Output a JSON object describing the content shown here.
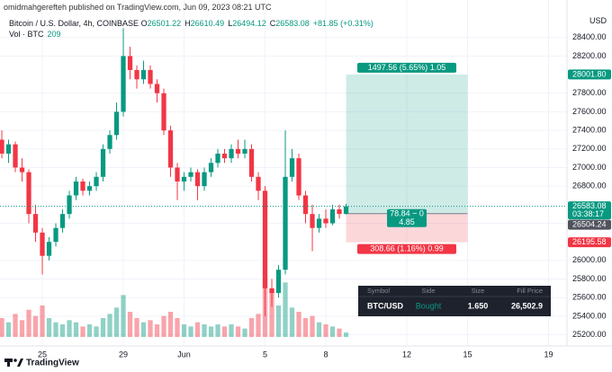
{
  "header": {
    "author_line": "omidmahgerefteh published on TradingView.com, Jun 09, 2023 08:21 UTC"
  },
  "chart_data": {
    "type": "candlestick",
    "symbol": "Bitcoin / U.S. Dollar, 4h, COINBASE",
    "ohlc_legend": [
      {
        "label": "O",
        "value": "26501.22"
      },
      {
        "label": "H",
        "value": "26610.49"
      },
      {
        "label": "L",
        "value": "26494.12"
      },
      {
        "label": "C",
        "value": "26583.08"
      }
    ],
    "change": "+81.85 (+0.31%)",
    "volume_legend": {
      "label": "Vol · BTC",
      "value": "209"
    },
    "currency": "USD",
    "candles": [
      [
        27300,
        27400,
        27100,
        27150
      ],
      [
        27150,
        27300,
        27050,
        27250
      ],
      [
        27250,
        27280,
        26950,
        27000
      ],
      [
        27000,
        27100,
        26850,
        26950
      ],
      [
        26950,
        26980,
        26400,
        26500
      ],
      [
        26500,
        26600,
        26200,
        26300
      ],
      [
        26300,
        26350,
        25850,
        26050
      ],
      [
        26050,
        26250,
        26000,
        26200
      ],
      [
        26200,
        26400,
        26150,
        26350
      ],
      [
        26350,
        26550,
        26300,
        26500
      ],
      [
        26500,
        26750,
        26450,
        26700
      ],
      [
        26700,
        26900,
        26650,
        26850
      ],
      [
        26850,
        26880,
        26700,
        26750
      ],
      [
        26750,
        26850,
        26700,
        26800
      ],
      [
        26800,
        26950,
        26750,
        26900
      ],
      [
        26900,
        27250,
        26850,
        27200
      ],
      [
        27200,
        27400,
        27150,
        27350
      ],
      [
        27350,
        27700,
        27300,
        27600
      ],
      [
        27600,
        28500,
        27550,
        28200
      ],
      [
        28200,
        28300,
        27950,
        28050
      ],
      [
        28050,
        28100,
        27850,
        27950
      ],
      [
        27950,
        28150,
        27900,
        28050
      ],
      [
        28050,
        28100,
        27850,
        27900
      ],
      [
        27900,
        27950,
        27700,
        27800
      ],
      [
        27800,
        27850,
        27350,
        27400
      ],
      [
        27400,
        27450,
        26900,
        27000
      ],
      [
        27000,
        27050,
        26650,
        26850
      ],
      [
        26850,
        26950,
        26750,
        26900
      ],
      [
        26900,
        27000,
        26850,
        26950
      ],
      [
        26950,
        26980,
        26650,
        26800
      ],
      [
        26800,
        27000,
        26750,
        26950
      ],
      [
        26950,
        27100,
        26900,
        27050
      ],
      [
        27050,
        27200,
        27000,
        27150
      ],
      [
        27150,
        27200,
        27050,
        27100
      ],
      [
        27100,
        27250,
        27050,
        27200
      ],
      [
        27200,
        27300,
        27100,
        27150
      ],
      [
        27150,
        27300,
        27100,
        27200
      ],
      [
        27200,
        27250,
        26850,
        26900
      ],
      [
        26900,
        26950,
        26650,
        26750
      ],
      [
        26750,
        26800,
        25400,
        25700
      ],
      [
        25700,
        25800,
        25500,
        25650
      ],
      [
        25650,
        25950,
        25600,
        25900
      ],
      [
        25900,
        27400,
        25850,
        26900
      ],
      [
        26900,
        27200,
        26850,
        27100
      ],
      [
        27100,
        27150,
        26650,
        26700
      ],
      [
        26700,
        26750,
        26400,
        26500
      ],
      [
        26500,
        26600,
        26100,
        26350
      ],
      [
        26350,
        26500,
        26300,
        26450
      ],
      [
        26450,
        26550,
        26350,
        26400
      ],
      [
        26400,
        26600,
        26380,
        26550
      ],
      [
        26550,
        26600,
        26450,
        26500
      ],
      [
        26501.22,
        26610.49,
        26494.12,
        26583.08
      ]
    ],
    "volume": [
      900,
      700,
      1100,
      800,
      1300,
      1000,
      1500,
      900,
      700,
      600,
      800,
      700,
      500,
      600,
      500,
      900,
      1100,
      1400,
      2000,
      1200,
      900,
      700,
      800,
      600,
      1000,
      1200,
      900,
      600,
      500,
      700,
      600,
      500,
      600,
      500,
      600,
      500,
      400,
      900,
      1100,
      2800,
      2200,
      1500,
      2600,
      1400,
      1200,
      900,
      1000,
      700,
      600,
      500,
      400,
      209
    ],
    "volume_lim": [
      0,
      3000
    ],
    "ylim": [
      25080,
      28610
    ],
    "yticks": [
      {
        "value": 28400,
        "label": "28400.00"
      },
      {
        "value": 28200,
        "label": "28200.00"
      },
      {
        "value": 27800,
        "label": "27800.00"
      },
      {
        "value": 27600,
        "label": "27600.00"
      },
      {
        "value": 27400,
        "label": "27400.00"
      },
      {
        "value": 27200,
        "label": "27200.00"
      },
      {
        "value": 27000,
        "label": "27000.00"
      },
      {
        "value": 26800,
        "label": "26800.00"
      },
      {
        "value": 26400,
        "label": "26400.00"
      },
      {
        "value": 26000,
        "label": "26000.00"
      },
      {
        "value": 25800,
        "label": "25800.00"
      },
      {
        "value": 25600,
        "label": "25600.00"
      },
      {
        "value": 25400,
        "label": "25400.00"
      },
      {
        "value": 25200,
        "label": "25200.00"
      }
    ],
    "xlim": [
      -0.27,
      83.73
    ],
    "xticks": [
      {
        "value": 6,
        "label": "25"
      },
      {
        "value": 18,
        "label": "29"
      },
      {
        "value": 27,
        "label": "Jun"
      },
      {
        "value": 39,
        "label": "5"
      },
      {
        "value": 48,
        "label": "8"
      },
      {
        "value": 60,
        "label": "12"
      },
      {
        "value": 69,
        "label": "15"
      },
      {
        "value": 81,
        "label": "19"
      }
    ],
    "grid": true,
    "up_color": "#089981",
    "down_color": "#f23645",
    "last_price": 26583.08,
    "countdown": "03:38:17",
    "position": {
      "entry": 26504.24,
      "target": {
        "value": 28001.8,
        "label": "28001.80"
      },
      "stop": 26195.58,
      "start": 51,
      "end": 69,
      "target_label": "1497.56 (5.65%) 1.05",
      "center_label": [
        "78.84 − 0",
        "4.85"
      ],
      "stop_label": "308.66 (1.16%) 0.99"
    }
  },
  "trade_table": {
    "columns": [
      "Symbol",
      "Side",
      "Size",
      "Fill Price"
    ],
    "row": [
      "BTC/USD",
      "Bought",
      "1.650",
      "26,502.9"
    ]
  },
  "footer": {
    "brand": "TradingView"
  }
}
